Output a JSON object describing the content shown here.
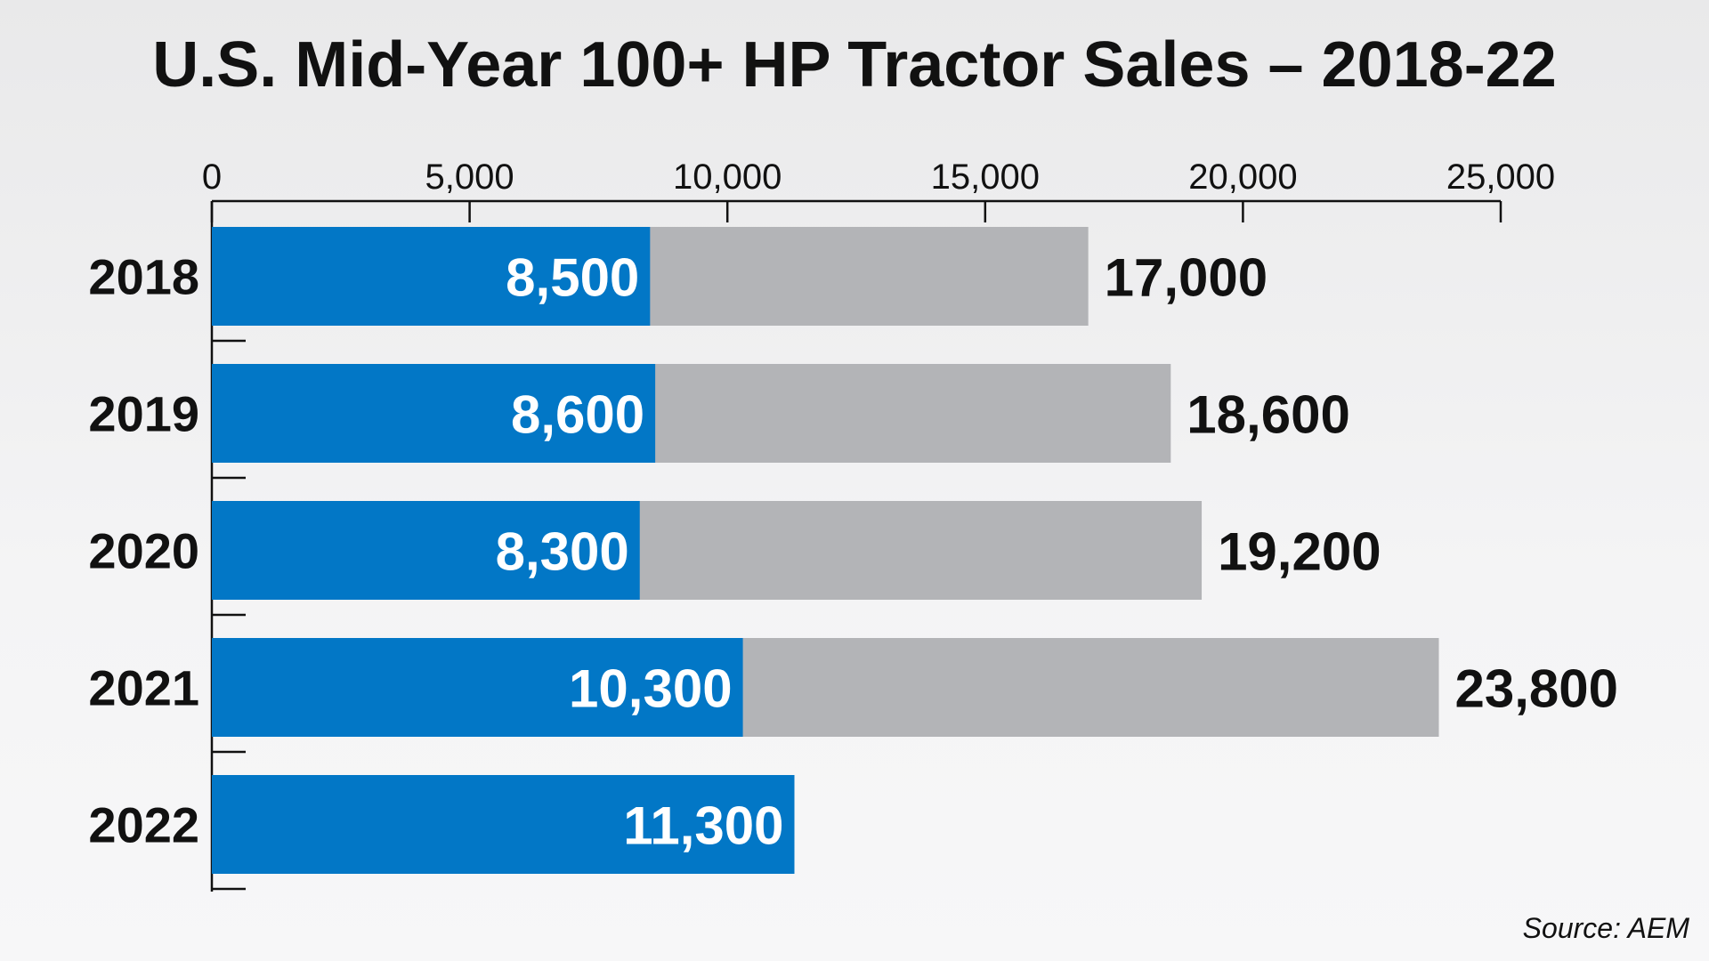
{
  "chart_data": {
    "type": "bar",
    "orientation": "horizontal",
    "title": "U.S. Mid-Year 100+ HP Tractor Sales – 2018-22",
    "categories": [
      "2018",
      "2019",
      "2020",
      "2021",
      "2022"
    ],
    "series": [
      {
        "values": [
          8500,
          8600,
          8300,
          10300,
          11300
        ],
        "labels": [
          "8,500",
          "8,600",
          "8,300",
          "10,300",
          "11,300"
        ],
        "color": "#0277c6"
      },
      {
        "values": [
          17000,
          18600,
          19200,
          23800,
          null
        ],
        "labels": [
          "17,000",
          "18,600",
          "19,200",
          "23,800",
          ""
        ],
        "color": "#b3b4b7"
      }
    ],
    "xlim": [
      0,
      25000
    ],
    "xticks": [
      0,
      5000,
      10000,
      15000,
      20000,
      25000
    ],
    "xtick_labels": [
      "0",
      "5,000",
      "10,000",
      "15,000",
      "20,000",
      "25,000"
    ],
    "axis_position": "top",
    "grid": false,
    "xlabel": "",
    "ylabel": ""
  },
  "source": "Source: AEM"
}
